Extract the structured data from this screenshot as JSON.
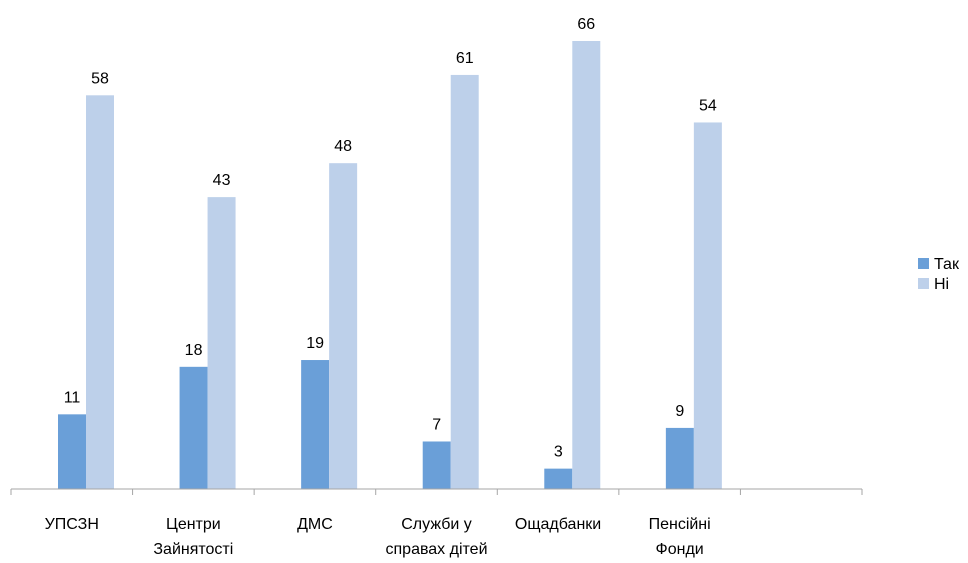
{
  "chart_data": {
    "type": "bar",
    "title": "",
    "xlabel": "",
    "ylabel": "",
    "categories": [
      [
        "УПСЗН"
      ],
      [
        "Центри",
        "Зайнятості"
      ],
      [
        "ДМС"
      ],
      [
        "Служби у",
        "справах дітей"
      ],
      [
        "Ощадбанки"
      ],
      [
        "Пенсійні",
        "Фонди"
      ],
      [
        ""
      ]
    ],
    "series": [
      {
        "name": "Так",
        "color": "#6a9fd8",
        "values": [
          11,
          18,
          19,
          7,
          3,
          9,
          null
        ]
      },
      {
        "name": "Ні",
        "color": "#bdd0ea",
        "values": [
          58,
          43,
          48,
          61,
          66,
          54,
          null
        ]
      }
    ],
    "ylim": [
      0,
      66
    ],
    "grid": false,
    "legend": "right",
    "data_labels": true
  }
}
